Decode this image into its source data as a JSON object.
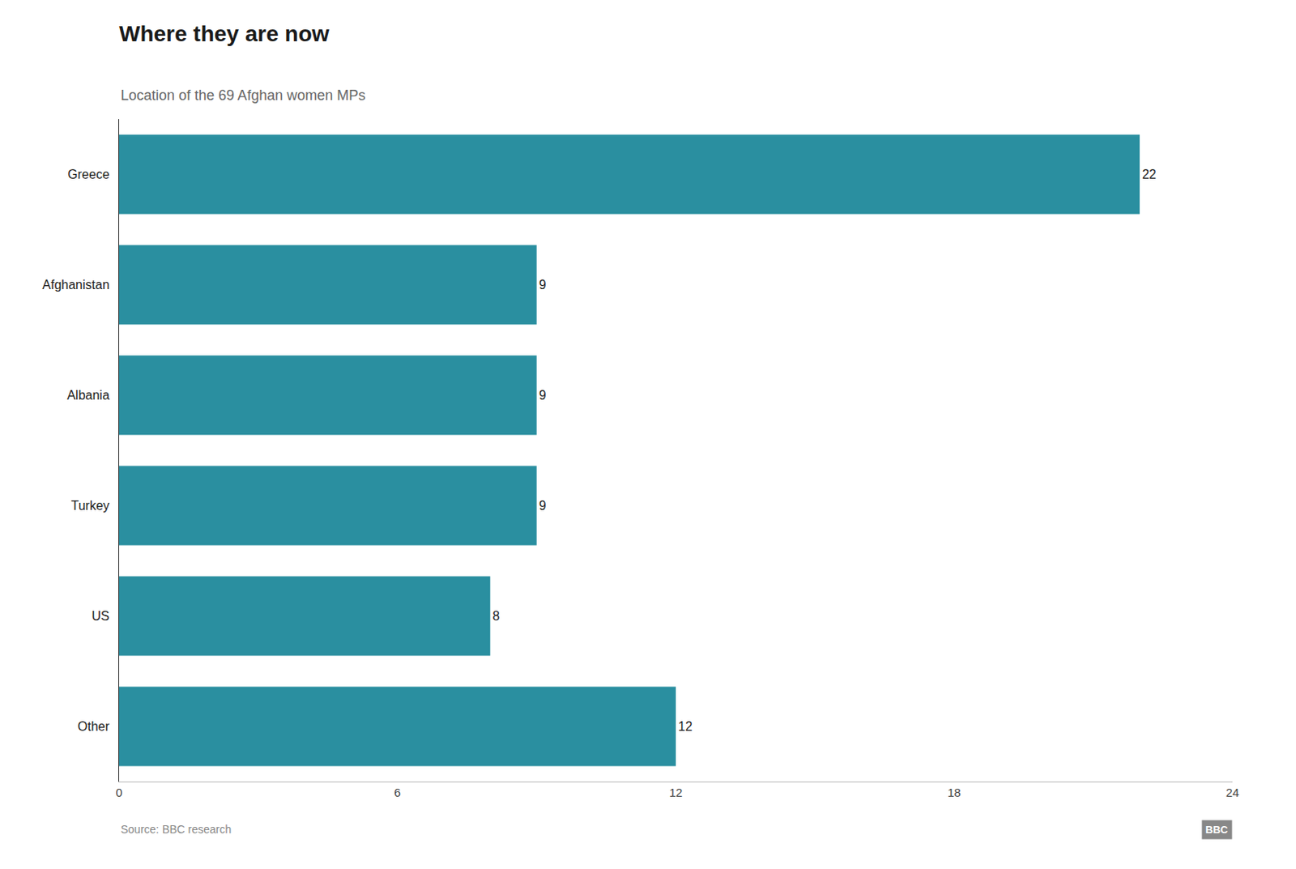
{
  "chart_data": {
    "type": "bar",
    "orientation": "horizontal",
    "title": "Where they are now",
    "subtitle": "Location of the 69 Afghan women MPs",
    "categories": [
      "Other",
      "US",
      "Turkey",
      "Albania",
      "Afghanistan",
      "Greece"
    ],
    "values": [
      12,
      8,
      9,
      9,
      9,
      22
    ],
    "color": "#2a8fa0",
    "xlim": [
      0,
      24
    ],
    "xticks": [
      0,
      6,
      12,
      18,
      24
    ],
    "grid": false,
    "data_labels": true,
    "annotations": [
      "Source: BBC research",
      "BBC"
    ]
  }
}
